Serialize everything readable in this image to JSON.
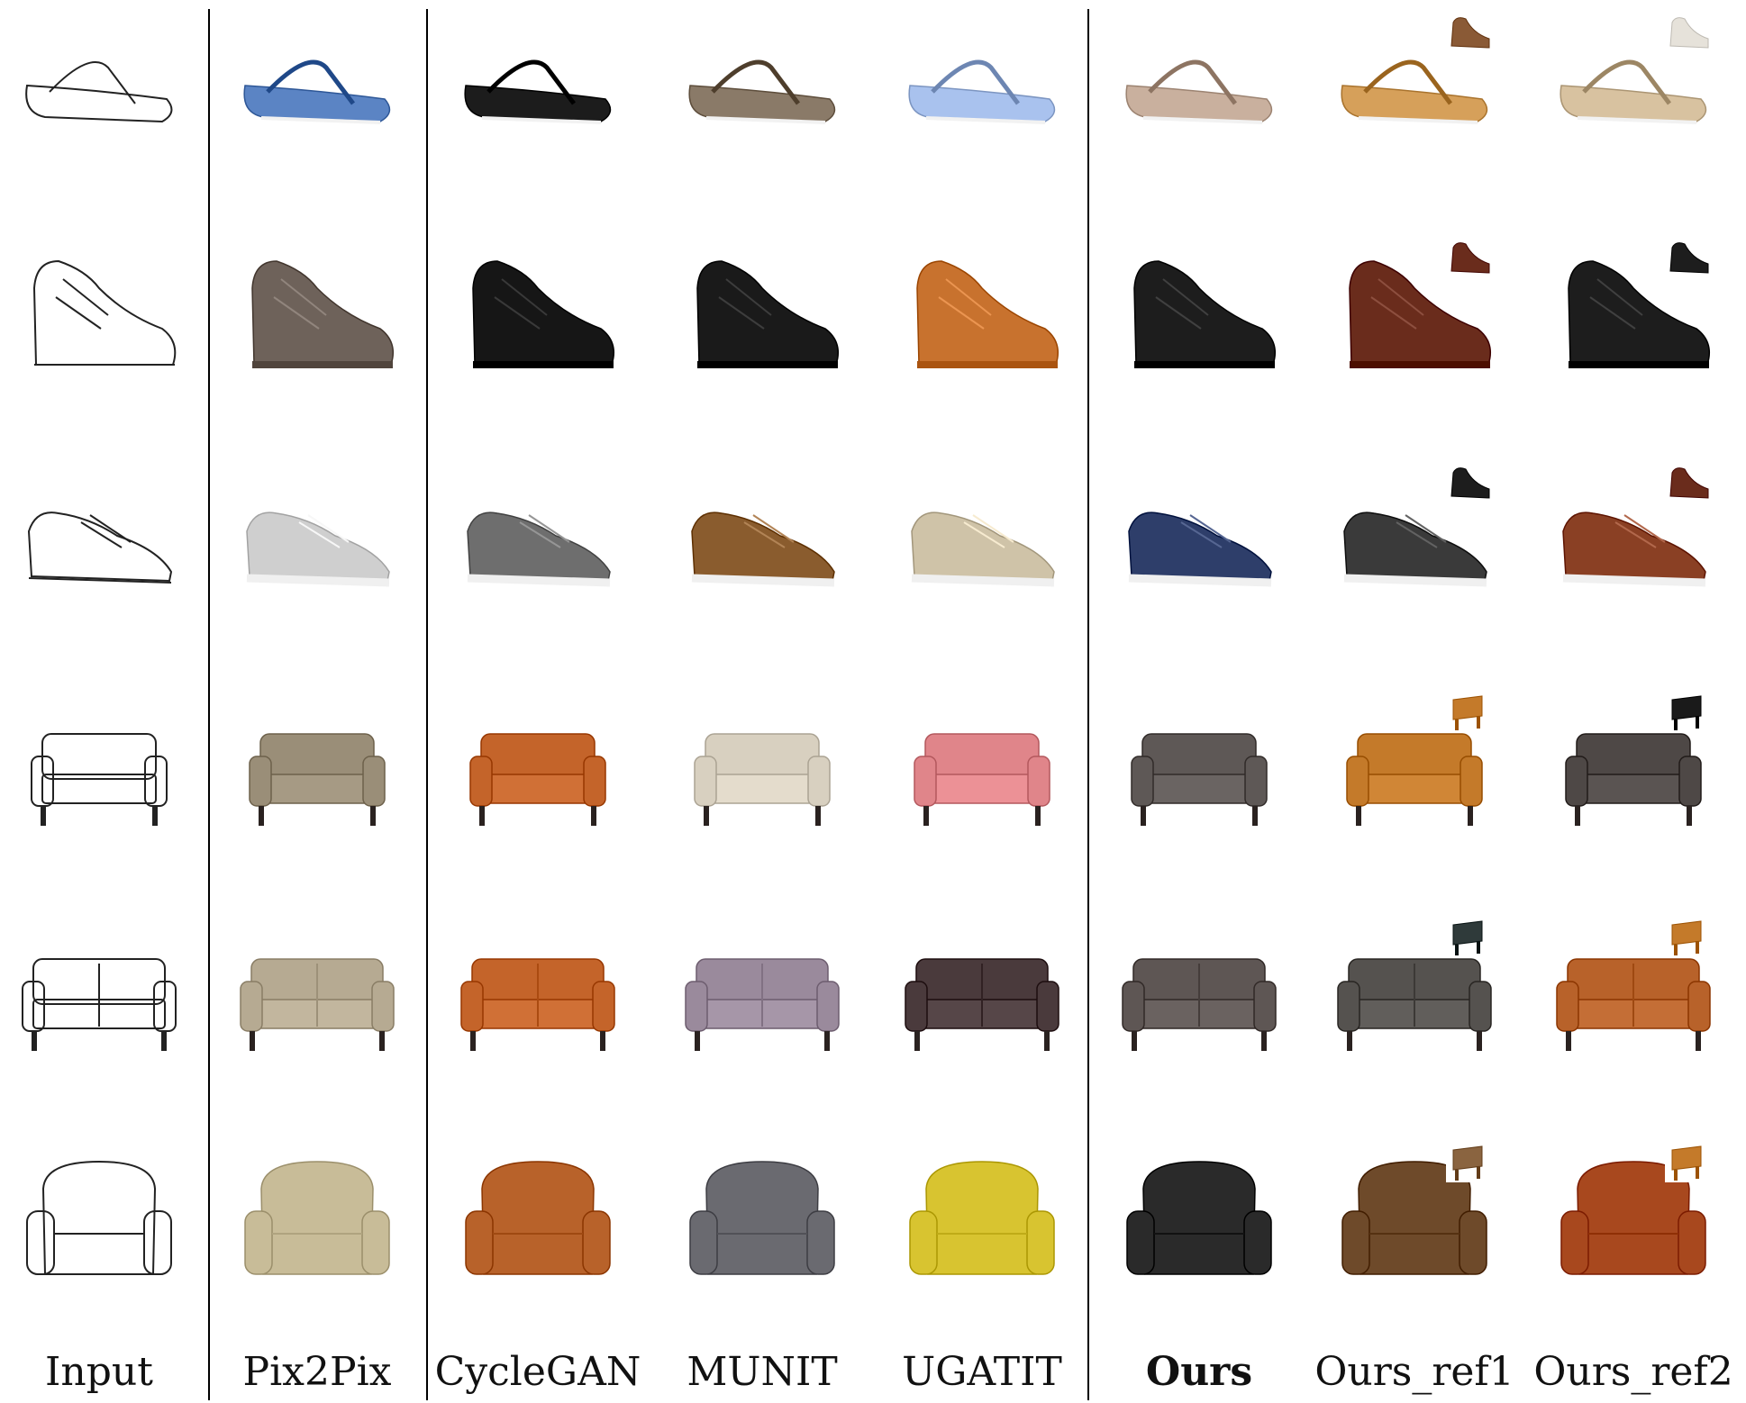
{
  "columns": [
    {
      "label": "Input",
      "bold": false
    },
    {
      "label": "Pix2Pix",
      "bold": false
    },
    {
      "label": "CycleGAN",
      "bold": false
    },
    {
      "label": "MUNIT",
      "bold": false
    },
    {
      "label": "UGATIT",
      "bold": false
    },
    {
      "label": "Ours",
      "bold": true
    },
    {
      "label": "Ours_ref1",
      "bold": false
    },
    {
      "label": "Ours_ref2",
      "bold": false
    }
  ],
  "rows": [
    {
      "kind": "shoe",
      "style": "sandal"
    },
    {
      "kind": "shoe",
      "style": "boot"
    },
    {
      "kind": "shoe",
      "style": "sneaker"
    },
    {
      "kind": "sofa",
      "style": "loveseat"
    },
    {
      "kind": "sofa",
      "style": "couch"
    },
    {
      "kind": "sofa",
      "style": "armchair"
    }
  ],
  "cells": [
    [
      "#ffffff",
      "#5b84c4",
      "#1c1c1c",
      "#8a7a68",
      "#a9c2ee",
      "#c9b09e",
      "#d6a05a",
      "#d8c2a0"
    ],
    [
      "#ffffff",
      "#6e625a",
      "#161616",
      "#1a1a1a",
      "#c8722e",
      "#1d1d1d",
      "#6a2c1c",
      "#1d1d1d"
    ],
    [
      "#ffffff",
      "#cfcfcf",
      "#6e6e6e",
      "#8a5c2e",
      "#cfc3a8",
      "#2e3e6a",
      "#3a3a3a",
      "#8a4024"
    ],
    [
      "#ffffff",
      "#9a8e78",
      "#c4642a",
      "#d8d0c0",
      "#e0858a",
      "#5e5856",
      "#c47a2a",
      "#4e4846"
    ],
    [
      "#ffffff",
      "#b6aa92",
      "#c4642a",
      "#9a8a9c",
      "#4a3a3c",
      "#5e5654",
      "#55524f",
      "#b8622a"
    ],
    [
      "#ffffff",
      "#c8bc98",
      "#b8622a",
      "#6a6a70",
      "#d8c430",
      "#2a2a2a",
      "#6e4a2a",
      "#a8481e"
    ]
  ],
  "references": [
    {
      "row": 0,
      "col": 6,
      "kind": "shoe",
      "color": "#8a5a36"
    },
    {
      "row": 0,
      "col": 7,
      "kind": "shoe",
      "color": "#e6e2da"
    },
    {
      "row": 1,
      "col": 6,
      "kind": "shoe",
      "color": "#6a2c1c"
    },
    {
      "row": 1,
      "col": 7,
      "kind": "shoe",
      "color": "#1d1d1d"
    },
    {
      "row": 2,
      "col": 6,
      "kind": "shoe",
      "color": "#1d1d1d"
    },
    {
      "row": 2,
      "col": 7,
      "kind": "shoe",
      "color": "#6a2c1c"
    },
    {
      "row": 3,
      "col": 6,
      "kind": "chair",
      "color": "#c47a2a"
    },
    {
      "row": 3,
      "col": 7,
      "kind": "chair",
      "color": "#1a1a1a"
    },
    {
      "row": 4,
      "col": 6,
      "kind": "chair",
      "color": "#2f3a3a"
    },
    {
      "row": 4,
      "col": 7,
      "kind": "chair",
      "color": "#c47a2a"
    },
    {
      "row": 5,
      "col": 6,
      "kind": "chair",
      "color": "#8a6440"
    },
    {
      "row": 5,
      "col": 7,
      "kind": "chair",
      "color": "#c47a2a"
    }
  ]
}
